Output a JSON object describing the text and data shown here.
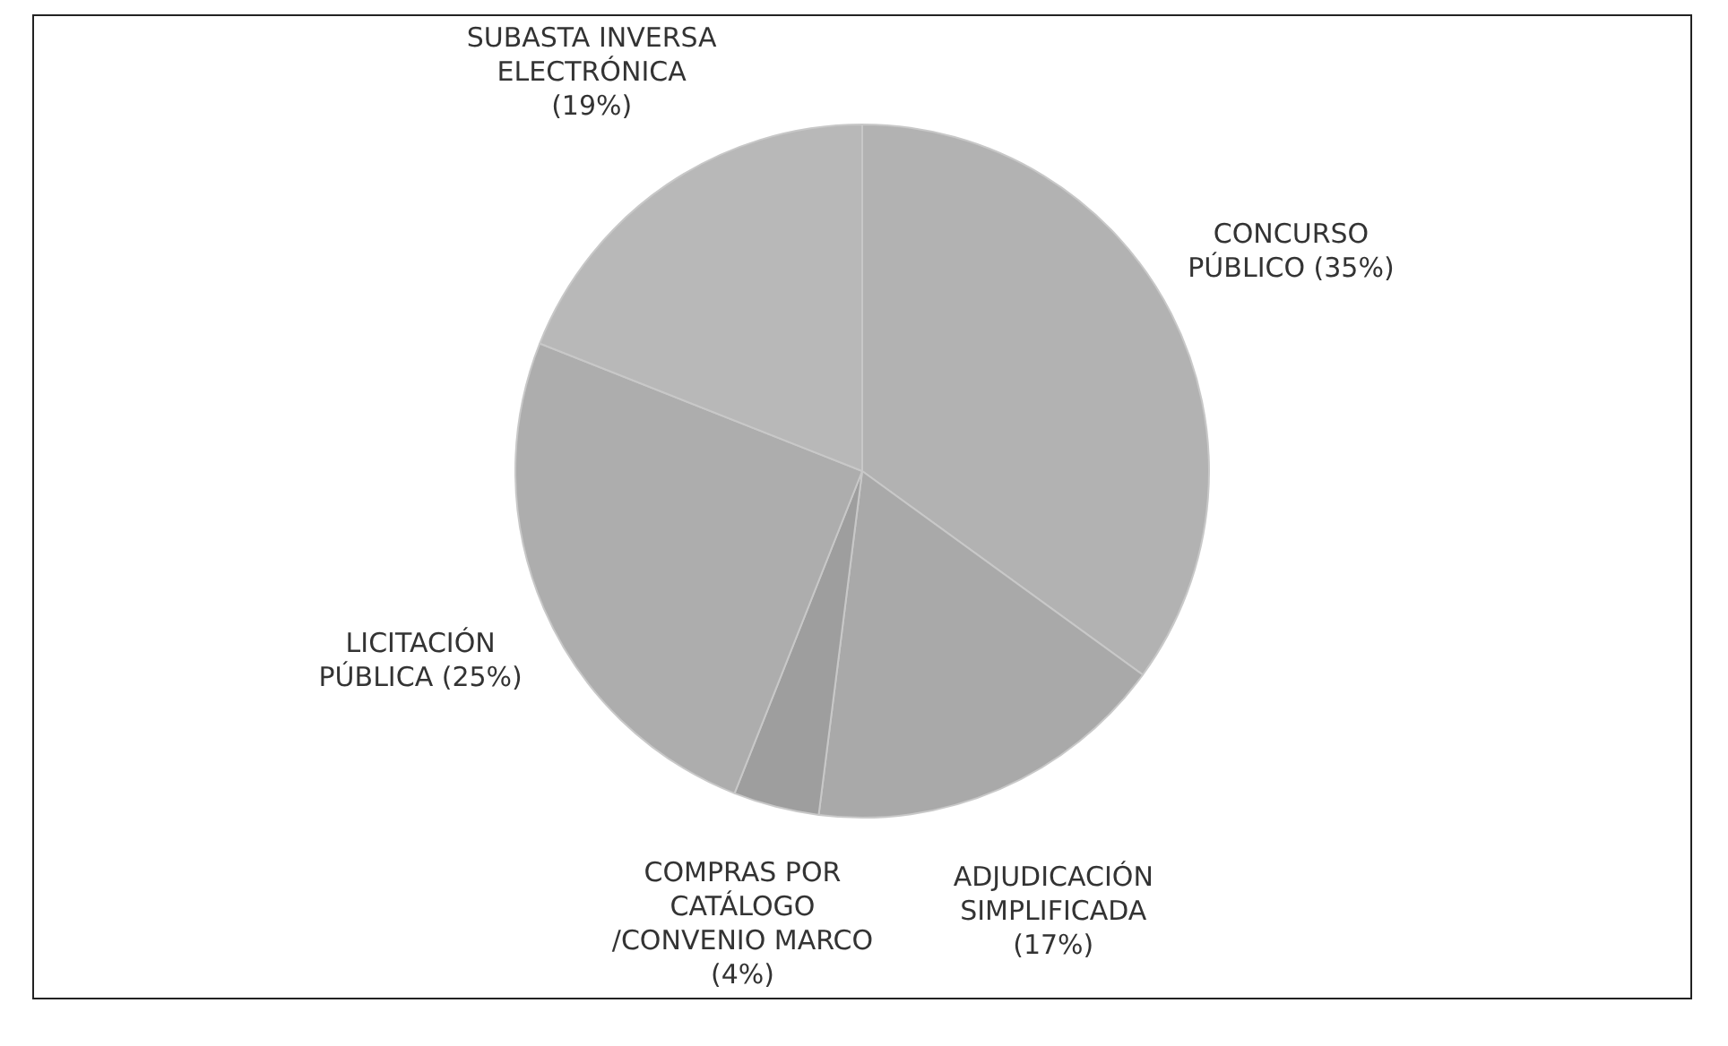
{
  "chart_data": {
    "type": "pie",
    "categories": [
      "CONCURSO PÚBLICO (35%)",
      "ADJUDICACIÓN SIMPLIFICADA (17%)",
      "COMPRAS POR CATÁLOGO /CONVENIO MARCO (4%)",
      "LICITACIÓN PÚBLICA (25%)",
      "SUBASTA INVERSA ELECTRÓNICA (19%)"
    ],
    "values": [
      35,
      17,
      4,
      25,
      19
    ],
    "colors": [
      "#b2b2b2",
      "#a9a9a9",
      "#9e9e9e",
      "#adadad",
      "#b8b8b8"
    ],
    "legend": false
  }
}
